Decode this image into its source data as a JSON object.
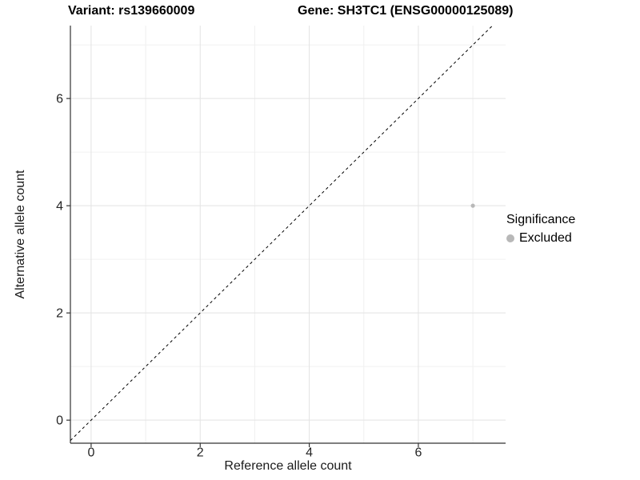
{
  "chart_data": {
    "type": "scatter",
    "title_left": "Variant: rs139660009",
    "title_right": "Gene: SH3TC1 (ENSG00000125089)",
    "xlabel": "Reference allele count",
    "ylabel": "Alternative allele count",
    "xlim": [
      -0.38,
      7.6
    ],
    "ylim": [
      -0.43,
      7.36
    ],
    "x_ticks": [
      0,
      2,
      4,
      6
    ],
    "y_ticks": [
      0,
      2,
      4,
      6
    ],
    "x_minor_ticks": [
      1,
      3,
      5,
      7
    ],
    "y_minor_ticks": [
      1,
      3,
      5,
      7
    ],
    "grid": "major and minor, light gray on white",
    "identity_line": {
      "slope": 1,
      "intercept": 0,
      "style": "dashed",
      "color": "#000000"
    },
    "series": [
      {
        "name": "Excluded",
        "color": "#b8b8b8",
        "points": [
          {
            "x": 7,
            "y": 4
          }
        ]
      }
    ],
    "legend": {
      "title": "Significance",
      "position": "right",
      "items": [
        {
          "label": "Excluded",
          "color": "#b8b8b8"
        }
      ]
    },
    "colors": {
      "grid_major": "#e3e3e3",
      "grid_minor": "#f0f0f0",
      "axis_line": "#333333",
      "tick_text": "#262626",
      "point": "#b8b8b8"
    }
  }
}
